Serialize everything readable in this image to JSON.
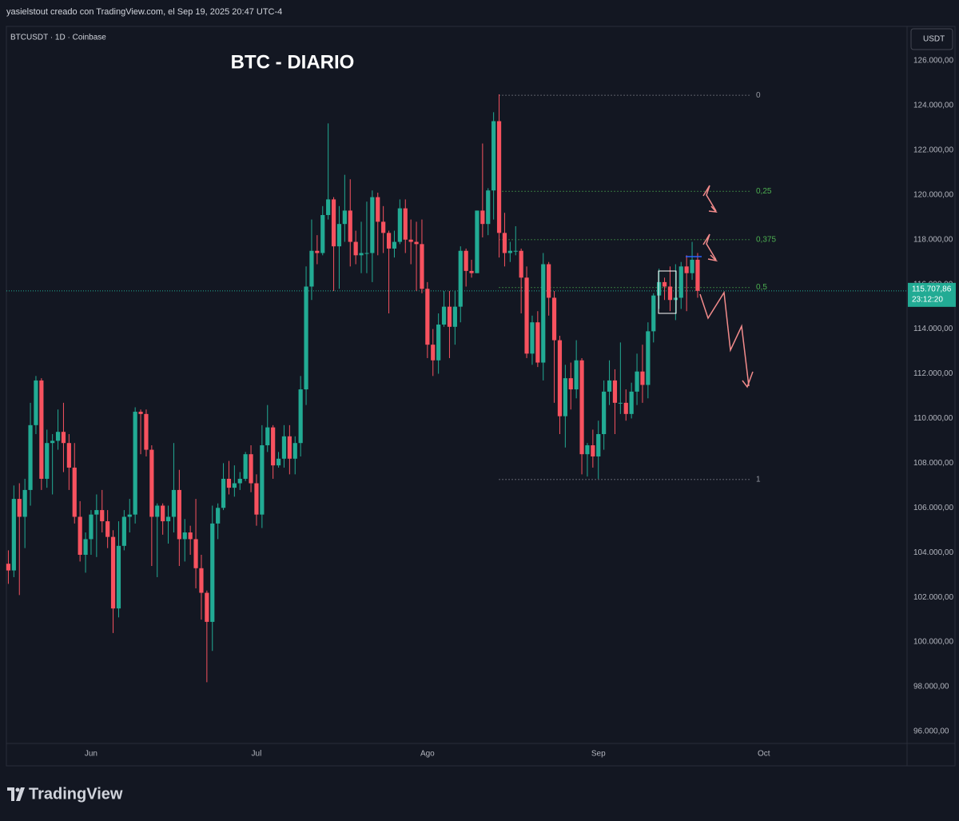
{
  "header": "yasielstout creado con TradingView.com, el Sep 19, 2025 20:47 UTC-4",
  "symbol": "BTCUSDT · 1D · Coinbase",
  "currency": "USDT",
  "logo": "TradingView",
  "chart_data": {
    "type": "candlestick",
    "title": "BTC - DIARIO",
    "up_color": "#22ab94",
    "down_color": "#f7525f",
    "grid": false,
    "categories": [
      null,
      null,
      null,
      null,
      null,
      null,
      null,
      null,
      null,
      null,
      null,
      null,
      null,
      null,
      null,
      "Jun",
      null,
      null,
      null,
      null,
      null,
      null,
      null,
      null,
      null,
      null,
      null,
      null,
      null,
      null,
      null,
      null,
      null,
      null,
      null,
      null,
      null,
      null,
      null,
      null,
      null,
      null,
      null,
      null,
      null,
      "Jul",
      null,
      null,
      null,
      null,
      null,
      null,
      null,
      null,
      null,
      null,
      null,
      null,
      null,
      null,
      null,
      null,
      null,
      null,
      null,
      null,
      null,
      null,
      null,
      null,
      null,
      null,
      null,
      null,
      null,
      null,
      "Ago",
      null,
      null,
      null,
      null,
      null,
      null,
      null,
      null,
      null,
      null,
      null,
      null,
      null,
      null,
      null,
      null,
      null,
      null,
      null,
      null,
      null,
      null,
      null,
      null,
      null,
      null,
      null,
      null,
      null,
      null,
      "Sep",
      null,
      null,
      null,
      null,
      null,
      null,
      null,
      null,
      null,
      null,
      null,
      null,
      null,
      null,
      null,
      null,
      null,
      null,
      null,
      null,
      null,
      null,
      null,
      null,
      null,
      null,
      null,
      null,
      null,
      "Oct"
    ],
    "open": [
      103500,
      103200,
      106400,
      105600,
      106800,
      109700,
      111700,
      107300,
      108900,
      109000,
      109400,
      108900,
      107800,
      105600,
      103900,
      104600,
      105700,
      105900,
      105400,
      104700,
      101500,
      104300,
      105600,
      105700,
      110300,
      110200,
      108600,
      105600,
      106100,
      105400,
      105600,
      106800,
      104600,
      104900,
      104600,
      103300,
      102200,
      100900,
      105300,
      106000,
      107300,
      106900,
      107100,
      107300,
      108400,
      107100,
      105700,
      108800,
      109600,
      107900,
      108200,
      109200,
      108200,
      108900,
      111300,
      115900,
      117500,
      117400,
      119100,
      119800,
      117700,
      118700,
      119300,
      117900,
      117300,
      117400,
      117400,
      119900,
      118800,
      118300,
      117600,
      117900,
      119400,
      118000,
      117900,
      117800,
      115800,
      113300,
      112600,
      114200,
      115000,
      114100,
      115000,
      117500,
      116600,
      116500,
      119300,
      118700,
      120200,
      123300,
      118300,
      117400,
      117500,
      117500,
      116300,
      112900,
      114300,
      112500,
      116900,
      115400,
      113500,
      110100,
      111800,
      111300,
      112600,
      108400,
      108800,
      108300,
      109300,
      111200,
      111700,
      110700,
      110700,
      110200,
      111200,
      112100,
      111500,
      113900,
      115500,
      116100,
      115900,
      115300,
      115400,
      116800,
      116500,
      117100,
      null,
      null,
      null,
      null,
      null,
      null,
      null,
      null,
      null,
      null,
      null,
      null
    ],
    "high": [
      104100,
      107000,
      107100,
      107300,
      110700,
      111900,
      111800,
      109500,
      109300,
      110400,
      110700,
      109300,
      108900,
      106300,
      104900,
      105900,
      106600,
      106800,
      105900,
      105000,
      105400,
      105900,
      106400,
      110500,
      110400,
      110400,
      108800,
      106200,
      106200,
      106100,
      108900,
      107700,
      105500,
      105200,
      106400,
      103900,
      102300,
      106100,
      106200,
      108000,
      108100,
      107900,
      107600,
      108500,
      108800,
      107500,
      109700,
      110600,
      109700,
      108500,
      109700,
      109700,
      109200,
      111900,
      116800,
      118900,
      118200,
      119500,
      123200,
      119900,
      119500,
      120900,
      120700,
      118400,
      118800,
      119700,
      120200,
      120100,
      119500,
      118400,
      118400,
      119800,
      119800,
      118900,
      118800,
      118900,
      116100,
      114000,
      114700,
      115700,
      115700,
      115700,
      117700,
      117600,
      117100,
      119300,
      122300,
      120300,
      123700,
      124500,
      119200,
      117900,
      118600,
      117600,
      116800,
      114600,
      114800,
      117400,
      117000,
      115700,
      113700,
      112400,
      112500,
      113500,
      112700,
      108900,
      109500,
      109900,
      111700,
      112600,
      112200,
      113400,
      111300,
      111600,
      112900,
      113300,
      114300,
      115600,
      116700,
      116300,
      116800,
      116900,
      117000,
      117300,
      117900,
      117400,
      null,
      null,
      null,
      null,
      null,
      null,
      null,
      null,
      null,
      null,
      null,
      null
    ],
    "low": [
      102600,
      102900,
      102100,
      104200,
      106100,
      109300,
      106800,
      106900,
      106600,
      108600,
      107600,
      106800,
      105300,
      103600,
      103100,
      103900,
      103800,
      104900,
      104200,
      100400,
      101100,
      104100,
      104900,
      105300,
      108400,
      108300,
      103400,
      102900,
      104800,
      104400,
      104900,
      103400,
      103600,
      103900,
      102400,
      101000,
      98200,
      99600,
      104600,
      105900,
      106600,
      106500,
      106800,
      107200,
      106700,
      105200,
      105100,
      108500,
      107300,
      107800,
      107800,
      107500,
      107500,
      108300,
      110600,
      115300,
      116900,
      117300,
      118900,
      115700,
      115800,
      117900,
      116800,
      116900,
      116500,
      116500,
      116100,
      117300,
      117400,
      114700,
      117200,
      117800,
      117400,
      116900,
      115700,
      115600,
      112700,
      111900,
      112000,
      114100,
      112700,
      113300,
      114300,
      115900,
      116300,
      116500,
      118100,
      118200,
      118900,
      117200,
      116800,
      117000,
      117300,
      114700,
      112700,
      112400,
      112300,
      111700,
      114600,
      110700,
      109300,
      108700,
      110400,
      110900,
      107500,
      107400,
      107800,
      107300,
      108600,
      110600,
      109300,
      110200,
      109900,
      110000,
      110600,
      110700,
      110900,
      113400,
      114900,
      115300,
      114800,
      114400,
      114900,
      114800,
      116200,
      115400,
      null,
      null,
      null,
      null,
      null,
      null,
      null,
      null,
      null,
      null,
      null,
      null
    ],
    "close": [
      103200,
      106400,
      105600,
      106800,
      109700,
      111700,
      107300,
      108900,
      109000,
      109400,
      108900,
      107800,
      105600,
      103900,
      104600,
      105700,
      105900,
      105400,
      104700,
      101500,
      104300,
      105600,
      105700,
      110300,
      110200,
      108600,
      105600,
      106100,
      105400,
      105600,
      106800,
      104600,
      104900,
      104600,
      103300,
      102200,
      100900,
      105300,
      106000,
      107300,
      106900,
      107100,
      107300,
      108400,
      107100,
      105700,
      108800,
      109600,
      107900,
      108200,
      109200,
      108200,
      108900,
      111300,
      115900,
      117500,
      117400,
      119100,
      119800,
      117700,
      118700,
      119300,
      117900,
      117300,
      117400,
      117400,
      119900,
      118800,
      118300,
      117600,
      117900,
      119400,
      118000,
      117900,
      117800,
      115800,
      113300,
      112600,
      114200,
      115000,
      114100,
      115000,
      117500,
      116600,
      116500,
      119300,
      118700,
      120200,
      123300,
      118300,
      117400,
      117500,
      117500,
      116300,
      112900,
      114300,
      112500,
      116900,
      115400,
      113500,
      110100,
      111800,
      111300,
      112600,
      108400,
      108800,
      108300,
      109300,
      111200,
      111700,
      110700,
      110700,
      110200,
      111200,
      112100,
      111500,
      113900,
      115500,
      116100,
      115900,
      115300,
      115400,
      116800,
      116500,
      117100,
      115707.86,
      null,
      null,
      null,
      null,
      null,
      null,
      null,
      null,
      null,
      null,
      null,
      null
    ],
    "ylim": [
      95460,
      127540
    ],
    "yticks": [
      {
        "value": 96000,
        "label": "96.000,00"
      },
      {
        "value": 98000,
        "label": "98.000,00"
      },
      {
        "value": 100000,
        "label": "100.000,00"
      },
      {
        "value": 102000,
        "label": "102.000,00"
      },
      {
        "value": 104000,
        "label": "104.000,00"
      },
      {
        "value": 106000,
        "label": "106.000,00"
      },
      {
        "value": 108000,
        "label": "108.000,00"
      },
      {
        "value": 110000,
        "label": "110.000,00"
      },
      {
        "value": 112000,
        "label": "112.000,00"
      },
      {
        "value": 114000,
        "label": "114.000,00"
      },
      {
        "value": 116000,
        "label": "116.000,00"
      },
      {
        "value": 118000,
        "label": "118.000,00"
      },
      {
        "value": 120000,
        "label": "120.000,00"
      },
      {
        "value": 122000,
        "label": "122.000,00"
      },
      {
        "value": 124000,
        "label": "124.000,00"
      },
      {
        "value": 126000,
        "label": "126.000,00"
      }
    ],
    "last_price": {
      "value": 115707.86,
      "label": "115.707,86",
      "countdown": "23:12:20",
      "color": "#22ab94"
    },
    "fib": [
      {
        "value": 124457,
        "label": "0",
        "color": "#9598a1"
      },
      {
        "value": 120160,
        "label": "0,25",
        "color": "#4caf50"
      },
      {
        "value": 118000,
        "label": "0,375",
        "color": "#4caf50"
      },
      {
        "value": 115860,
        "label": "0,5",
        "color": "#4caf50"
      },
      {
        "value": 107270,
        "label": "1",
        "color": "#9598a1"
      }
    ]
  }
}
